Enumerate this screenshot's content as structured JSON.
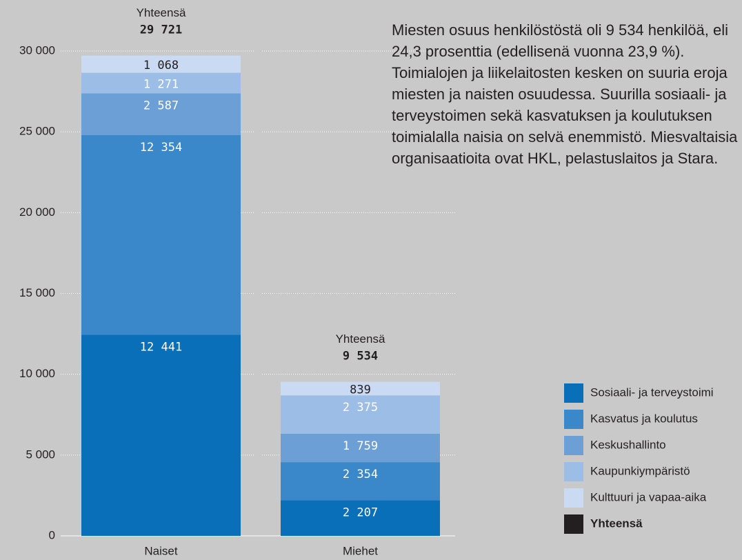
{
  "chart_data": {
    "type": "stacked_bar",
    "categories": [
      "Naiset",
      "Miehet"
    ],
    "series": [
      {
        "name": "Sosiaali- ja terveystoimi",
        "color": "#0a6fb9",
        "values": [
          12441,
          2207
        ],
        "value_labels": [
          "12 441",
          "2 207"
        ]
      },
      {
        "name": "Kasvatus ja koulutus",
        "color": "#3a88c9",
        "values": [
          12354,
          2354
        ],
        "value_labels": [
          "12 354",
          "2 354"
        ]
      },
      {
        "name": "Keskushallinto",
        "color": "#6b9fd6",
        "values": [
          2587,
          1759
        ],
        "value_labels": [
          "2 587",
          "1 759"
        ]
      },
      {
        "name": "Kaupunkiympäristö",
        "color": "#9cbde6",
        "values": [
          1271,
          2375
        ],
        "value_labels": [
          "1 271",
          "2 375"
        ]
      },
      {
        "name": "Kulttuuri ja vapaa-aika",
        "color": "#c9daf2",
        "values": [
          1068,
          839
        ],
        "value_labels": [
          "1 068",
          "839"
        ]
      }
    ],
    "totals": {
      "name": "Yhteensä",
      "color": "#231f20",
      "values": [
        29721,
        9534
      ],
      "value_labels": [
        "29 721",
        "9 534"
      ]
    },
    "ylim": [
      0,
      30000
    ],
    "yticks": [
      0,
      {
        "value": 5000,
        "label": "5 000"
      },
      {
        "value": 10000,
        "label": "10 000"
      },
      {
        "value": 15000,
        "label": "15 000"
      },
      {
        "value": 20000,
        "label": "20 000"
      },
      {
        "value": 25000,
        "label": "25 000"
      },
      {
        "value": 30000,
        "label": "30 000"
      }
    ],
    "grid": true,
    "annotation": "Miesten osuus henkilöstöstä oli 9 534 henkilöä, eli 24,3 prosenttia (edellisenä vuonna 23,9 %). Toimialojen ja liikelaitosten kesken on suuria eroja miesten ja naisten osuudessa. Suurilla sosiaali- ja terveystoimen sekä kasvatuksen ja koulutuksen toimialalla naisia on selvä enemmistö. Miesvaltaisia organisaatioita ovat HKL, pelastuslaitos ja Stara."
  }
}
